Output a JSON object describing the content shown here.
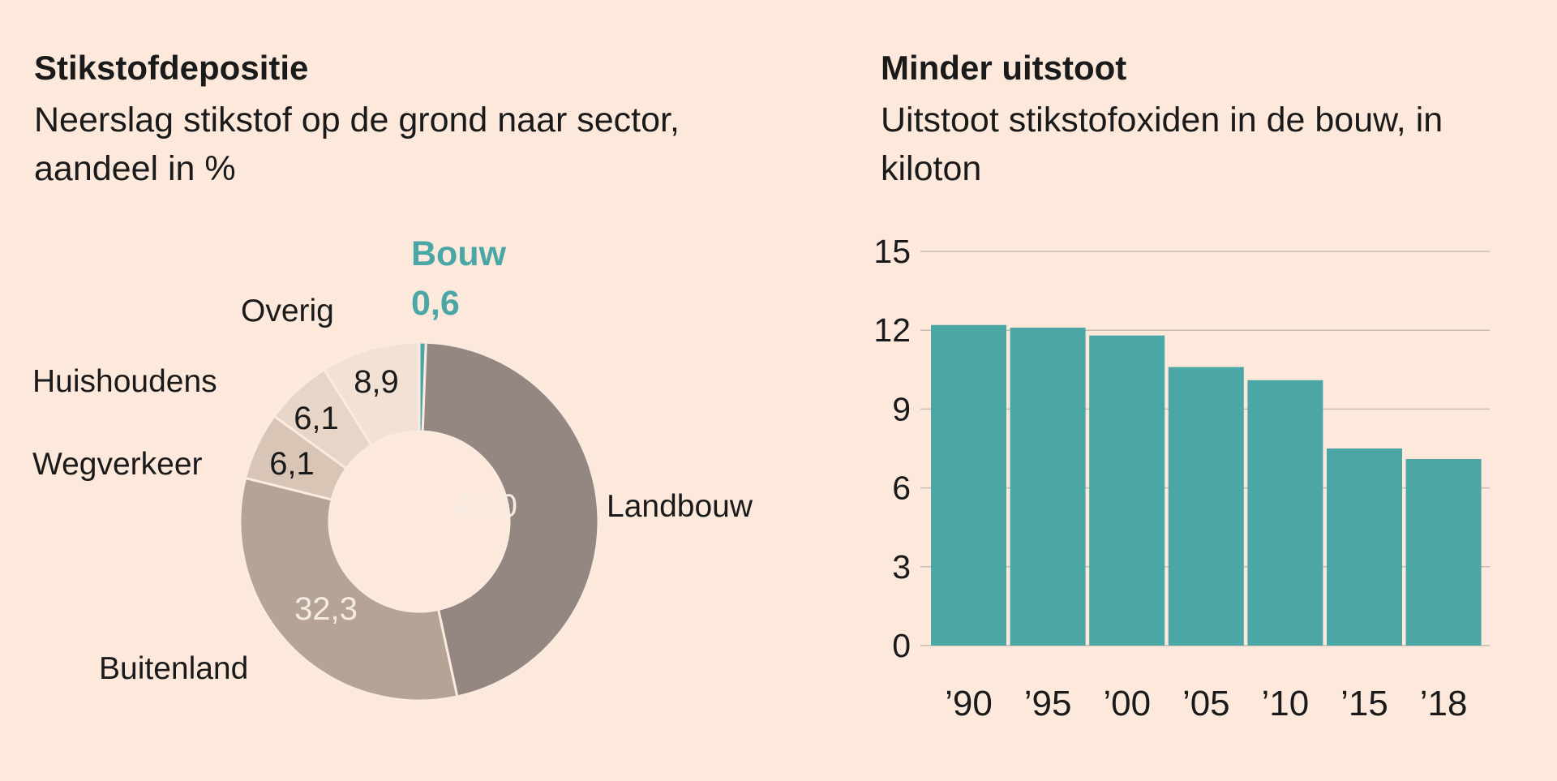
{
  "colors": {
    "background": "#fde9dc",
    "bar": "#4ba6a6",
    "accent": "#4ba6a6",
    "landbouw": "#948680",
    "buitenland": "#b5a396",
    "wegverkeer": "#d8c5b6",
    "huishoudens": "#e7d5c7",
    "overig": "#f1e2d5",
    "grid": "#c9bcb3"
  },
  "chart_data": [
    {
      "type": "pie",
      "title": "Stikstofdepositie",
      "subtitle": "Neerslag stikstof op de grond naar sector, aandeel in %",
      "slices": [
        {
          "label": "Bouw",
          "value": 0.6,
          "value_label": "0,6",
          "highlight": true
        },
        {
          "label": "Landbouw",
          "value": 46.0,
          "value_label": "46,0"
        },
        {
          "label": "Buitenland",
          "value": 32.3,
          "value_label": "32,3"
        },
        {
          "label": "Wegverkeer",
          "value": 6.1,
          "value_label": "6,1"
        },
        {
          "label": "Huishoudens",
          "value": 6.1,
          "value_label": "6,1"
        },
        {
          "label": "Overig",
          "value": 8.9,
          "value_label": "8,9"
        }
      ]
    },
    {
      "type": "bar",
      "title": "Minder uitstoot",
      "subtitle": "Uitstoot stikstofoxiden in de bouw, in kiloton",
      "categories": [
        "’90",
        "’95",
        "’00",
        "’05",
        "’10",
        "’15",
        "’18"
      ],
      "values": [
        12.2,
        12.1,
        11.8,
        10.6,
        10.1,
        7.5,
        7.1
      ],
      "ylim": [
        0,
        15
      ],
      "yticks": [
        0,
        3,
        6,
        9,
        12,
        15
      ],
      "grid": true
    }
  ]
}
